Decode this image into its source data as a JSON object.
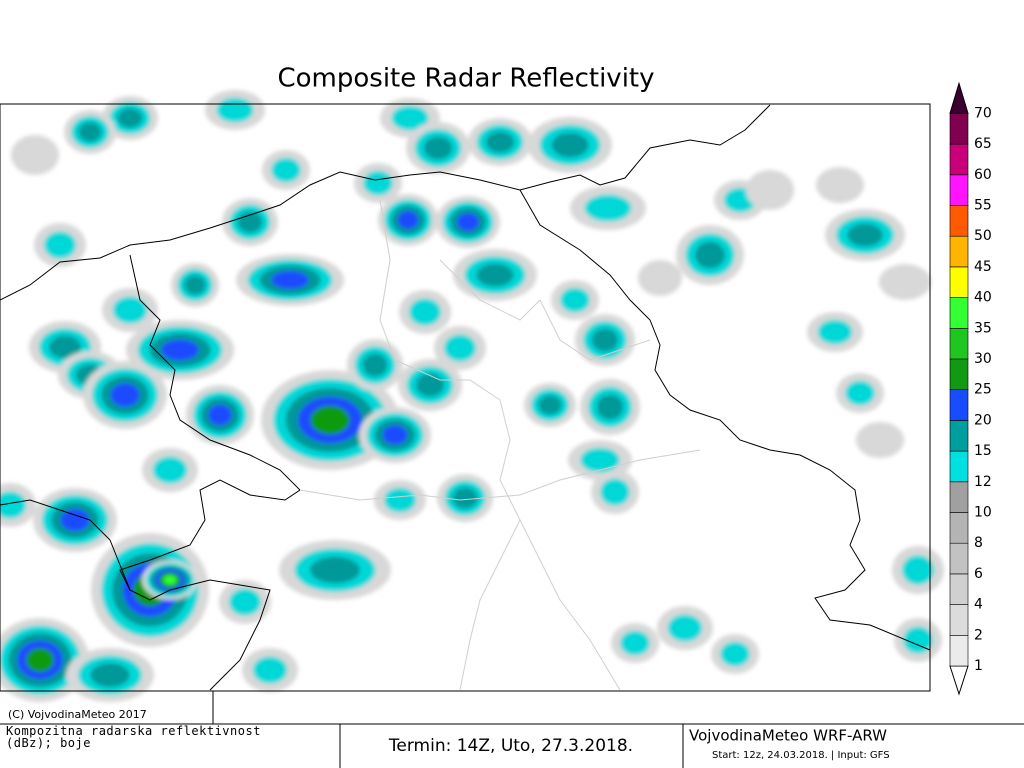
{
  "header": {
    "title": "Composite Radar Reflectivity"
  },
  "colorbar": {
    "levels": [
      1,
      2,
      4,
      6,
      8,
      10,
      12,
      15,
      20,
      25,
      30,
      35,
      40,
      45,
      50,
      55,
      60,
      65,
      70
    ],
    "colors": [
      "#ffffff",
      "#ebebeb",
      "#dcdcdc",
      "#d0d0d0",
      "#c2c2c2",
      "#b4b4b4",
      "#a0a0a0",
      "#00e0e0",
      "#009e9e",
      "#1a4cff",
      "#119a11",
      "#1fc61f",
      "#33ff33",
      "#ffff00",
      "#ffb400",
      "#ff5a00",
      "#ff14ff",
      "#c8007a",
      "#820050",
      "#3c0030"
    ]
  },
  "footer": {
    "copyright": "(C) VojvodinaMeteo 2017",
    "description": "Kompozitna radarska reflektivnost (dBz); boje",
    "valid_time": "Termin: 14Z, Uto, 27.3.2018.",
    "model": "VojvodinaMeteo WRF-ARW",
    "run": "Start: 12z, 24.03.2018. | Input: GFS"
  }
}
